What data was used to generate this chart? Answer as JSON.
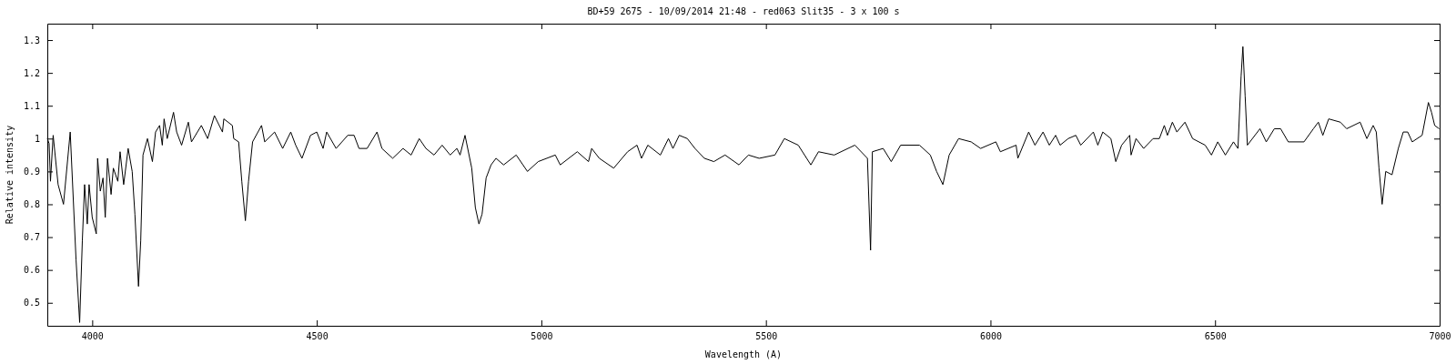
{
  "chart_data": {
    "type": "line",
    "title": "BD+59 2675 - 10/09/2014 21:48 - red063 Slit35 - 3 x 100 s",
    "xlabel": "Wavelength (A)",
    "ylabel": "Relative intensity",
    "xlim": [
      3900,
      7000
    ],
    "ylim": [
      0.43,
      1.35
    ],
    "xticks": [
      4000,
      4500,
      5000,
      5500,
      6000,
      6500,
      7000
    ],
    "yticks": [
      0.5,
      0.6,
      0.7,
      0.8,
      0.9,
      1,
      1.1,
      1.2,
      1.3
    ],
    "grid": false,
    "marker": "none",
    "line_style": "solid",
    "series": [
      {
        "color": "#000000",
        "x": [
          3900,
          3904,
          3907,
          3913,
          3924,
          3936,
          3951,
          3964,
          3972,
          3978,
          3983,
          3989,
          3993,
          4000,
          4009,
          4012,
          4018,
          4024,
          4029,
          4034,
          4042,
          4047,
          4057,
          4062,
          4070,
          4080,
          4089,
          4095,
          4103,
          4108,
          4113,
          4123,
          4134,
          4141,
          4150,
          4156,
          4160,
          4167,
          4181,
          4188,
          4199,
          4214,
          4221,
          4243,
          4257,
          4272,
          4290,
          4293,
          4312,
          4315,
          4326,
          4333,
          4341,
          4348,
          4357,
          4377,
          4384,
          4406,
          4424,
          4442,
          4453,
          4467,
          4486,
          4500,
          4514,
          4522,
          4543,
          4569,
          4583,
          4594,
          4612,
          4634,
          4645,
          4669,
          4692,
          4710,
          4728,
          4743,
          4761,
          4779,
          4797,
          4812,
          4819,
          4830,
          4845,
          4853,
          4861,
          4868,
          4877,
          4888,
          4899,
          4916,
          4944,
          4969,
          4993,
          5031,
          5042,
          5080,
          5105,
          5112,
          5129,
          5161,
          5192,
          5213,
          5223,
          5237,
          5265,
          5283,
          5293,
          5307,
          5325,
          5342,
          5363,
          5384,
          5409,
          5440,
          5461,
          5485,
          5520,
          5541,
          5572,
          5600,
          5617,
          5652,
          5698,
          5726,
          5733,
          5737,
          5761,
          5779,
          5800,
          5842,
          5866,
          5880,
          5894,
          5908,
          5929,
          5957,
          5978,
          6012,
          6022,
          6057,
          6061,
          6085,
          6099,
          6117,
          6131,
          6145,
          6155,
          6173,
          6190,
          6201,
          6229,
          6239,
          6250,
          6268,
          6279,
          6292,
          6310,
          6313,
          6324,
          6341,
          6362,
          6376,
          6387,
          6394,
          6405,
          6415,
          6433,
          6450,
          6478,
          6492,
          6506,
          6523,
          6541,
          6551,
          6558,
          6562,
          6567,
          6572,
          6600,
          6614,
          6632,
          6646,
          6663,
          6698,
          6719,
          6730,
          6740,
          6753,
          6779,
          6793,
          6823,
          6838,
          6852,
          6859,
          6865,
          6872,
          6880,
          6894,
          6908,
          6919,
          6929,
          6939,
          6961,
          6975,
          6982,
          6989,
          6999
        ],
        "values": [
          1.0,
          0.985,
          0.87,
          1.01,
          0.86,
          0.8,
          1.02,
          0.63,
          0.44,
          0.69,
          0.86,
          0.74,
          0.86,
          0.76,
          0.71,
          0.94,
          0.84,
          0.88,
          0.76,
          0.94,
          0.83,
          0.91,
          0.87,
          0.96,
          0.86,
          0.97,
          0.9,
          0.77,
          0.55,
          0.69,
          0.95,
          1.0,
          0.93,
          1.02,
          1.04,
          0.98,
          1.06,
          1.0,
          1.08,
          1.02,
          0.98,
          1.05,
          0.99,
          1.04,
          1.0,
          1.07,
          1.02,
          1.06,
          1.04,
          1.0,
          0.99,
          0.87,
          0.75,
          0.87,
          0.99,
          1.04,
          0.99,
          1.02,
          0.97,
          1.02,
          0.98,
          0.94,
          1.01,
          1.02,
          0.97,
          1.02,
          0.97,
          1.01,
          1.01,
          0.97,
          0.97,
          1.02,
          0.97,
          0.94,
          0.97,
          0.95,
          1.0,
          0.97,
          0.95,
          0.98,
          0.95,
          0.97,
          0.95,
          1.01,
          0.91,
          0.79,
          0.74,
          0.77,
          0.88,
          0.92,
          0.94,
          0.92,
          0.95,
          0.9,
          0.93,
          0.95,
          0.92,
          0.96,
          0.93,
          0.97,
          0.94,
          0.91,
          0.96,
          0.98,
          0.94,
          0.98,
          0.95,
          1.0,
          0.97,
          1.01,
          1.0,
          0.97,
          0.94,
          0.93,
          0.95,
          0.92,
          0.95,
          0.94,
          0.95,
          1.0,
          0.98,
          0.92,
          0.96,
          0.95,
          0.98,
          0.94,
          0.66,
          0.96,
          0.97,
          0.93,
          0.98,
          0.98,
          0.95,
          0.9,
          0.86,
          0.95,
          1.0,
          0.99,
          0.97,
          0.99,
          0.96,
          0.98,
          0.94,
          1.02,
          0.98,
          1.02,
          0.98,
          1.01,
          0.98,
          1.0,
          1.01,
          0.98,
          1.02,
          0.98,
          1.02,
          1.0,
          0.93,
          0.98,
          1.01,
          0.95,
          1.0,
          0.97,
          1.0,
          1.0,
          1.04,
          1.01,
          1.05,
          1.02,
          1.05,
          1.0,
          0.98,
          0.95,
          0.99,
          0.95,
          0.99,
          0.97,
          1.19,
          1.28,
          1.13,
          0.98,
          1.03,
          0.99,
          1.03,
          1.03,
          0.99,
          0.99,
          1.03,
          1.05,
          1.01,
          1.06,
          1.05,
          1.03,
          1.05,
          1.0,
          1.04,
          1.02,
          0.91,
          0.8,
          0.9,
          0.89,
          0.97,
          1.02,
          1.02,
          0.99,
          1.01,
          1.11,
          1.08,
          1.04,
          1.03
        ]
      }
    ]
  }
}
